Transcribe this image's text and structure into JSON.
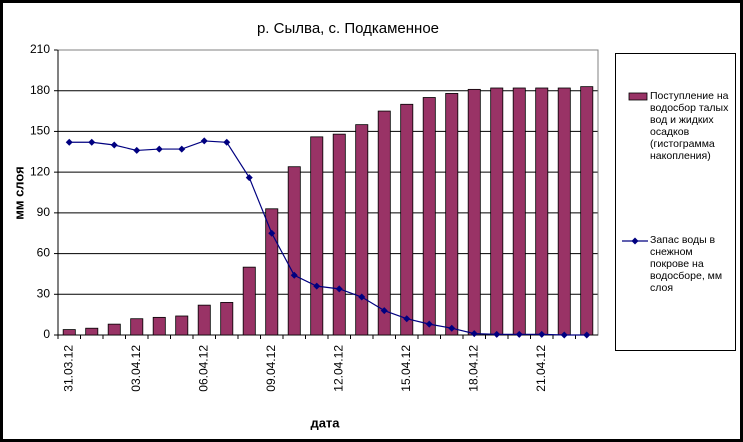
{
  "chart_data": {
    "type": "bar",
    "title": "р. Сылва, с. Подкаменное",
    "x_label": "дата",
    "y_label": "мм слоя",
    "categories": [
      "31.03.12",
      null,
      null,
      "03.04.12",
      null,
      null,
      "06.04.12",
      null,
      null,
      "09.04.12",
      null,
      null,
      "12.04.12",
      null,
      null,
      "15.04.12",
      null,
      null,
      "18.04.12",
      null,
      null,
      "21.04.12",
      null,
      null
    ],
    "series": [
      {
        "name": "Поступление на водосбор талых вод и жидких осадков (гистограмма накопления)",
        "type": "bar",
        "color": "#993366",
        "values": [
          4,
          5,
          8,
          12,
          13,
          14,
          22,
          24,
          50,
          93,
          124,
          146,
          148,
          155,
          165,
          170,
          175,
          178,
          181,
          182,
          182,
          182,
          182,
          183
        ]
      },
      {
        "name": "Запас воды в снежном покрове на водосборе, мм слоя",
        "type": "line",
        "color": "#000080",
        "values": [
          142,
          142,
          140,
          136,
          137,
          137,
          143,
          142,
          116,
          75,
          44,
          36,
          34,
          28,
          18,
          12,
          8,
          5,
          1,
          0.5,
          0.5,
          0.5,
          0,
          0
        ]
      }
    ],
    "ylim": [
      0,
      210
    ],
    "yticks": [
      0,
      30,
      60,
      90,
      120,
      150,
      180,
      210
    ],
    "grid": true,
    "legend": "right"
  }
}
